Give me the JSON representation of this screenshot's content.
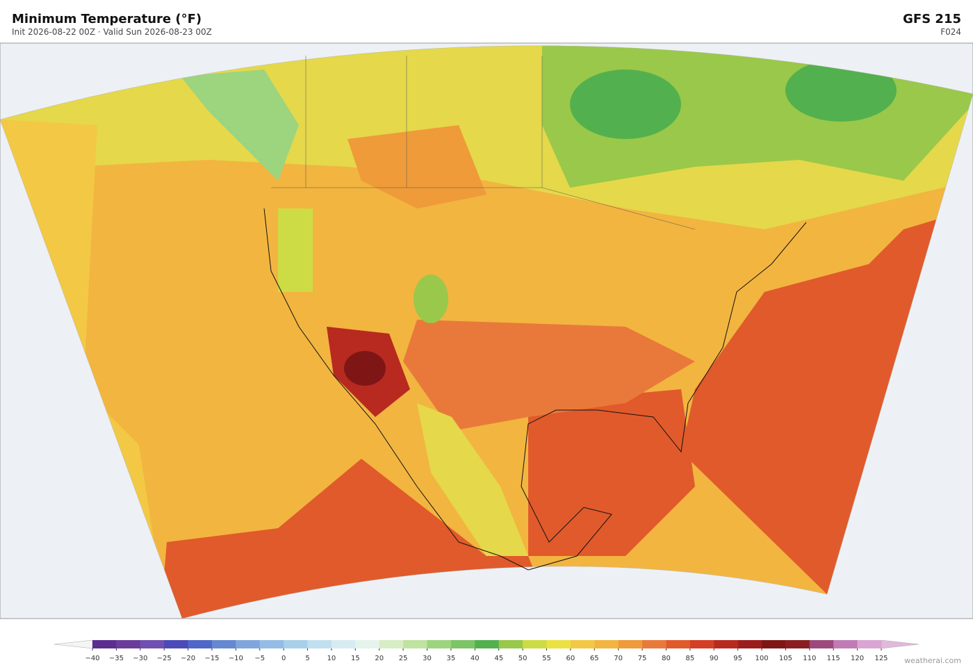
{
  "header": {
    "title": "Minimum Temperature  (°F)",
    "subtitle": "Init 2026-08-22 00Z  ·  Valid Sun 2026-08-23 00Z",
    "model": "GFS  215",
    "forecast_hour": "F024"
  },
  "colorbar": {
    "ticks": [
      {
        "value": -40,
        "label": "−40"
      },
      {
        "value": -35,
        "label": "−35"
      },
      {
        "value": -30,
        "label": "−30"
      },
      {
        "value": -25,
        "label": "−25"
      },
      {
        "value": -20,
        "label": "−20"
      },
      {
        "value": -15,
        "label": "−15"
      },
      {
        "value": -10,
        "label": "−10"
      },
      {
        "value": -5,
        "label": "−5"
      },
      0,
      5,
      10,
      15,
      20,
      25,
      30,
      35,
      40,
      45,
      50,
      55,
      60,
      65,
      70,
      75,
      80,
      85,
      90,
      95,
      100,
      105,
      110,
      115,
      120,
      125
    ],
    "colors": [
      "#5b2d90",
      "#6a3d9a",
      "#7050b0",
      "#4a4ab8",
      "#4f67c8",
      "#6688d0",
      "#7fa6dc",
      "#93bde4",
      "#a9d0ea",
      "#c0e0ef",
      "#d6ecf2",
      "#e4f4ec",
      "#d6edc6",
      "#bfe3a0",
      "#9dd47e",
      "#7cc465",
      "#52b14e",
      "#9ac84a",
      "#cddc45",
      "#ece142",
      "#f3c845",
      "#f2b540",
      "#ef9b3a",
      "#e9793a",
      "#e15a2b",
      "#d43f26",
      "#b82a20",
      "#9c1d1d",
      "#7f1616",
      "#8a1d22",
      "#9c4a7c",
      "#c07bb5",
      "#d9a5d3"
    ],
    "under_color": "#f4f4f4",
    "over_color": "#e2b8dc"
  },
  "footer": {
    "credit": "weatherai.com"
  }
}
